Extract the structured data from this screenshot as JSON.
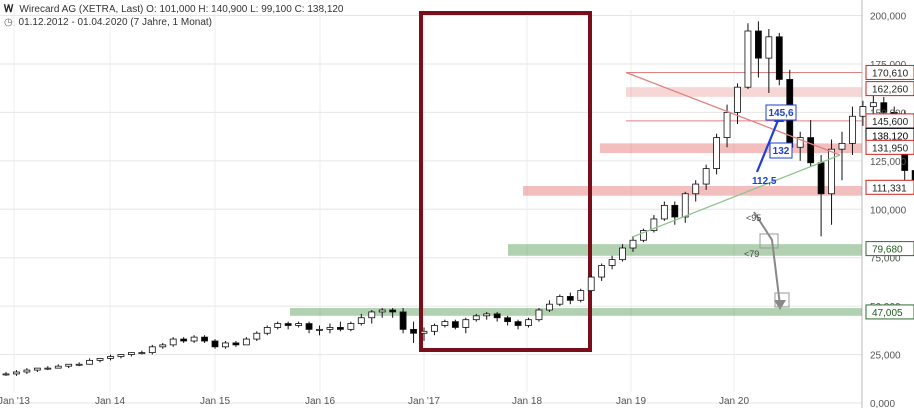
{
  "header": {
    "title": "Wirecard AG (XETRA, Last)",
    "ohlc": "O: 101,000  H: 140,900  L: 99,100  C: 138,120",
    "range": "01.12.2012 - 01.04.2020",
    "period": "(7 Jahre, 1 Monat)"
  },
  "chart_data": {
    "type": "candlestick",
    "x_ticks": [
      "Jan '13",
      "Jan 14",
      "Jan 15",
      "Jan 16",
      "Jan '17",
      "Jan 18",
      "Jan 19",
      "Jan 20"
    ],
    "y_ticks": [
      "0,000",
      "25,000",
      "50,000",
      "75,000",
      "100,000",
      "125,000",
      "150,000",
      "175,000",
      "200,000"
    ],
    "ylim": [
      0,
      200
    ],
    "candles": [
      [
        0,
        15,
        16,
        14,
        15
      ],
      [
        1,
        15,
        17,
        14,
        16
      ],
      [
        2,
        16,
        18,
        15,
        17
      ],
      [
        3,
        17,
        18,
        16,
        18
      ],
      [
        4,
        18,
        19,
        17,
        18
      ],
      [
        5,
        18,
        20,
        18,
        19
      ],
      [
        6,
        19,
        20,
        18,
        20
      ],
      [
        7,
        20,
        21,
        19,
        20
      ],
      [
        8,
        20,
        23,
        20,
        22
      ],
      [
        9,
        22,
        23,
        21,
        23
      ],
      [
        10,
        23,
        25,
        22,
        24
      ],
      [
        11,
        24,
        25,
        23,
        25
      ],
      [
        12,
        25,
        26,
        24,
        26
      ],
      [
        13,
        26,
        27,
        25,
        26
      ],
      [
        14,
        26,
        30,
        25,
        29
      ],
      [
        15,
        29,
        31,
        28,
        30
      ],
      [
        16,
        30,
        34,
        29,
        33
      ],
      [
        17,
        33,
        34,
        31,
        32
      ],
      [
        18,
        32,
        35,
        31,
        34
      ],
      [
        19,
        34,
        35,
        31,
        32
      ],
      [
        20,
        32,
        33,
        28,
        29
      ],
      [
        21,
        29,
        32,
        28,
        31
      ],
      [
        22,
        31,
        32,
        29,
        30
      ],
      [
        23,
        30,
        34,
        30,
        33
      ],
      [
        24,
        33,
        37,
        32,
        36
      ],
      [
        25,
        36,
        40,
        35,
        39
      ],
      [
        26,
        39,
        42,
        38,
        41
      ],
      [
        27,
        41,
        42,
        38,
        40
      ],
      [
        28,
        40,
        42,
        39,
        41
      ],
      [
        29,
        41,
        42,
        36,
        38
      ],
      [
        30,
        38,
        40,
        35,
        38
      ],
      [
        31,
        38,
        41,
        36,
        39
      ],
      [
        32,
        39,
        42,
        37,
        38
      ],
      [
        33,
        38,
        42,
        37,
        41
      ],
      [
        34,
        41,
        46,
        40,
        44
      ],
      [
        35,
        44,
        48,
        41,
        47
      ],
      [
        36,
        47,
        49,
        44,
        48
      ],
      [
        37,
        48,
        49,
        44,
        47
      ],
      [
        38,
        47,
        49,
        36,
        38
      ],
      [
        39,
        38,
        42,
        31,
        36
      ],
      [
        40,
        36,
        39,
        32,
        37
      ],
      [
        41,
        37,
        41,
        35,
        40
      ],
      [
        42,
        40,
        43,
        39,
        42
      ],
      [
        43,
        42,
        43,
        38,
        39
      ],
      [
        44,
        39,
        44,
        36,
        43
      ],
      [
        45,
        43,
        46,
        42,
        45
      ],
      [
        46,
        45,
        47,
        43,
        46
      ],
      [
        47,
        46,
        47,
        42,
        44
      ],
      [
        48,
        44,
        45,
        40,
        42
      ],
      [
        49,
        42,
        43,
        38,
        40
      ],
      [
        50,
        40,
        44,
        39,
        43
      ],
      [
        51,
        43,
        49,
        42,
        48
      ],
      [
        52,
        48,
        53,
        47,
        51
      ],
      [
        53,
        51,
        56,
        50,
        55
      ],
      [
        54,
        55,
        57,
        51,
        53
      ],
      [
        55,
        53,
        59,
        52,
        58
      ],
      [
        56,
        58,
        66,
        57,
        65
      ],
      [
        57,
        65,
        72,
        63,
        71
      ],
      [
        58,
        71,
        76,
        69,
        74
      ],
      [
        59,
        74,
        82,
        73,
        80
      ],
      [
        60,
        80,
        86,
        78,
        84
      ],
      [
        61,
        84,
        90,
        83,
        89
      ],
      [
        62,
        89,
        97,
        88,
        95
      ],
      [
        63,
        95,
        104,
        94,
        102
      ],
      [
        64,
        102,
        104,
        92,
        96
      ],
      [
        65,
        96,
        109,
        93,
        108
      ],
      [
        66,
        108,
        115,
        104,
        113
      ],
      [
        67,
        113,
        123,
        110,
        121
      ],
      [
        68,
        121,
        139,
        118,
        137
      ],
      [
        69,
        137,
        154,
        132,
        150
      ],
      [
        70,
        150,
        165,
        144,
        163
      ],
      [
        71,
        163,
        196,
        162,
        192
      ],
      [
        72,
        192,
        197,
        168,
        178
      ],
      [
        73,
        178,
        193,
        160,
        189
      ],
      [
        74,
        189,
        191,
        164,
        167
      ],
      [
        75,
        167,
        172,
        128,
        132
      ],
      [
        76,
        132,
        140,
        125,
        137
      ],
      [
        77,
        137,
        146,
        122,
        124
      ],
      [
        78,
        124,
        128,
        86,
        108
      ],
      [
        79,
        108,
        136,
        92,
        131
      ],
      [
        80,
        131,
        140,
        115,
        134
      ],
      [
        81,
        134,
        153,
        128,
        148
      ],
      [
        82,
        148,
        156,
        143,
        153
      ],
      [
        83,
        153,
        159,
        144,
        155
      ],
      [
        84,
        155,
        158,
        142,
        150
      ],
      [
        85,
        150,
        153,
        137,
        148
      ],
      [
        86,
        148,
        151,
        110,
        120
      ],
      [
        87,
        120,
        123,
        109,
        113
      ],
      [
        88,
        113,
        126,
        108,
        123
      ],
      [
        89,
        123,
        125,
        107,
        115
      ],
      [
        90,
        115,
        138,
        110,
        134
      ],
      [
        91,
        134,
        137,
        117,
        119
      ],
      [
        92,
        119,
        123,
        80,
        111
      ],
      [
        93,
        101,
        141,
        99,
        138
      ]
    ],
    "levels": [
      {
        "label": "170,610",
        "value": 170.61,
        "color": "#cc2222"
      },
      {
        "label": "162,260",
        "value": 162.26,
        "color": "#cc2222"
      },
      {
        "label": "145,600",
        "value": 145.6,
        "color": "#cc2222"
      },
      {
        "label": "138,120",
        "value": 138.12,
        "color": "#000000"
      },
      {
        "label": "131,950",
        "value": 131.95,
        "color": "#cc2222"
      },
      {
        "label": "111,331",
        "value": 111.33,
        "color": "#cc2222"
      },
      {
        "label": "79,680",
        "value": 79.68,
        "color": "#2e6b2e"
      },
      {
        "label": "47,005",
        "value": 47.0,
        "color": "#2e6b2e"
      }
    ],
    "annotations": [
      "145,6",
      "132",
      "112,5",
      "<95",
      "<79"
    ],
    "colors": {
      "bull": "#ffffff",
      "bear": "#000000",
      "resistance": "#cc2222",
      "support": "#2e6b2e",
      "frame": "#7a0f1c",
      "target": "#1d3fd6"
    }
  }
}
